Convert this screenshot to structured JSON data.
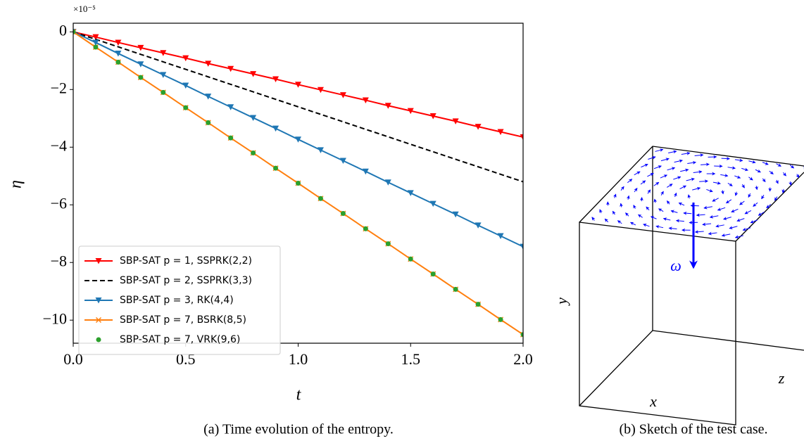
{
  "chart_data": {
    "type": "line",
    "xlabel": "t",
    "ylabel": "η",
    "scale_label": "×10⁻⁵",
    "x": [
      0,
      0.1,
      0.2,
      0.3,
      0.4,
      0.5,
      0.6,
      0.7,
      0.8,
      0.9,
      1.0,
      1.1,
      1.2,
      1.3,
      1.4,
      1.5,
      1.6,
      1.7,
      1.8,
      1.9,
      2.0
    ],
    "xlim": [
      0,
      2.0
    ],
    "xticks": [
      {
        "value": 0,
        "label": "0.0"
      },
      0.5,
      {
        "value": 1.0,
        "label": "1.0"
      },
      1.5,
      {
        "value": 2.0,
        "label": "2.0"
      }
    ],
    "ylim": [
      -10.8,
      0.3
    ],
    "yticks": [
      0,
      {
        "value": -2,
        "label": "−2"
      },
      {
        "value": -4,
        "label": "−4"
      },
      {
        "value": -6,
        "label": "−6"
      },
      {
        "value": -8,
        "label": "−8"
      },
      {
        "value": -10,
        "label": "−10"
      }
    ],
    "legend": "lower left",
    "series": [
      {
        "name": "SBP-SAT p = 1, SSPRK(2,2)",
        "color": "#ff0000",
        "marker": "triangle-down",
        "linestyle": "solid",
        "values": [
          0,
          -0.18,
          -0.37,
          -0.55,
          -0.73,
          -0.91,
          -1.1,
          -1.28,
          -1.46,
          -1.64,
          -1.83,
          -2.01,
          -2.19,
          -2.37,
          -2.56,
          -2.74,
          -2.92,
          -3.1,
          -3.29,
          -3.47,
          -3.65
        ]
      },
      {
        "name": "SBP-SAT p = 2, SSPRK(3,3)",
        "color": "#000000",
        "marker": "none",
        "linestyle": "dashed",
        "values": [
          0,
          -0.26,
          -0.52,
          -0.78,
          -1.04,
          -1.3,
          -1.56,
          -1.82,
          -2.08,
          -2.34,
          -2.6,
          -2.86,
          -3.12,
          -3.38,
          -3.64,
          -3.9,
          -4.16,
          -4.42,
          -4.68,
          -4.94,
          -5.2
        ]
      },
      {
        "name": "SBP-SAT p = 3, RK(4,4)",
        "color": "#1f77b4",
        "marker": "triangle-down",
        "linestyle": "solid",
        "values": [
          0,
          -0.37,
          -0.75,
          -1.12,
          -1.49,
          -1.86,
          -2.24,
          -2.61,
          -2.98,
          -3.35,
          -3.73,
          -4.1,
          -4.47,
          -4.84,
          -5.22,
          -5.59,
          -5.96,
          -6.33,
          -6.71,
          -7.08,
          -7.45
        ]
      },
      {
        "name": "SBP-SAT p = 7, BSRK(8,5)",
        "color": "#ff7f0e",
        "marker": "x",
        "linestyle": "solid",
        "values": [
          0,
          -0.53,
          -1.05,
          -1.58,
          -2.1,
          -2.63,
          -3.15,
          -3.68,
          -4.2,
          -4.73,
          -5.25,
          -5.78,
          -6.3,
          -6.83,
          -7.35,
          -7.88,
          -8.4,
          -8.93,
          -9.45,
          -9.98,
          -10.5
        ]
      },
      {
        "name": "SBP-SAT p = 7, VRK(9,6)",
        "color": "#2ca02c",
        "marker": "circle",
        "linestyle": "none",
        "values": [
          0,
          -0.53,
          -1.05,
          -1.58,
          -2.1,
          -2.63,
          -3.15,
          -3.68,
          -4.2,
          -4.73,
          -5.25,
          -5.78,
          -6.3,
          -6.83,
          -7.35,
          -7.88,
          -8.4,
          -8.93,
          -9.45,
          -9.98,
          -10.5
        ]
      }
    ]
  },
  "sketch": {
    "x_label": "x",
    "y_label": "y",
    "z_label": "z",
    "omega_label": "ω"
  },
  "captions": [
    "(a) Time evolution of the entropy.",
    "(b) Sketch of the test case."
  ]
}
